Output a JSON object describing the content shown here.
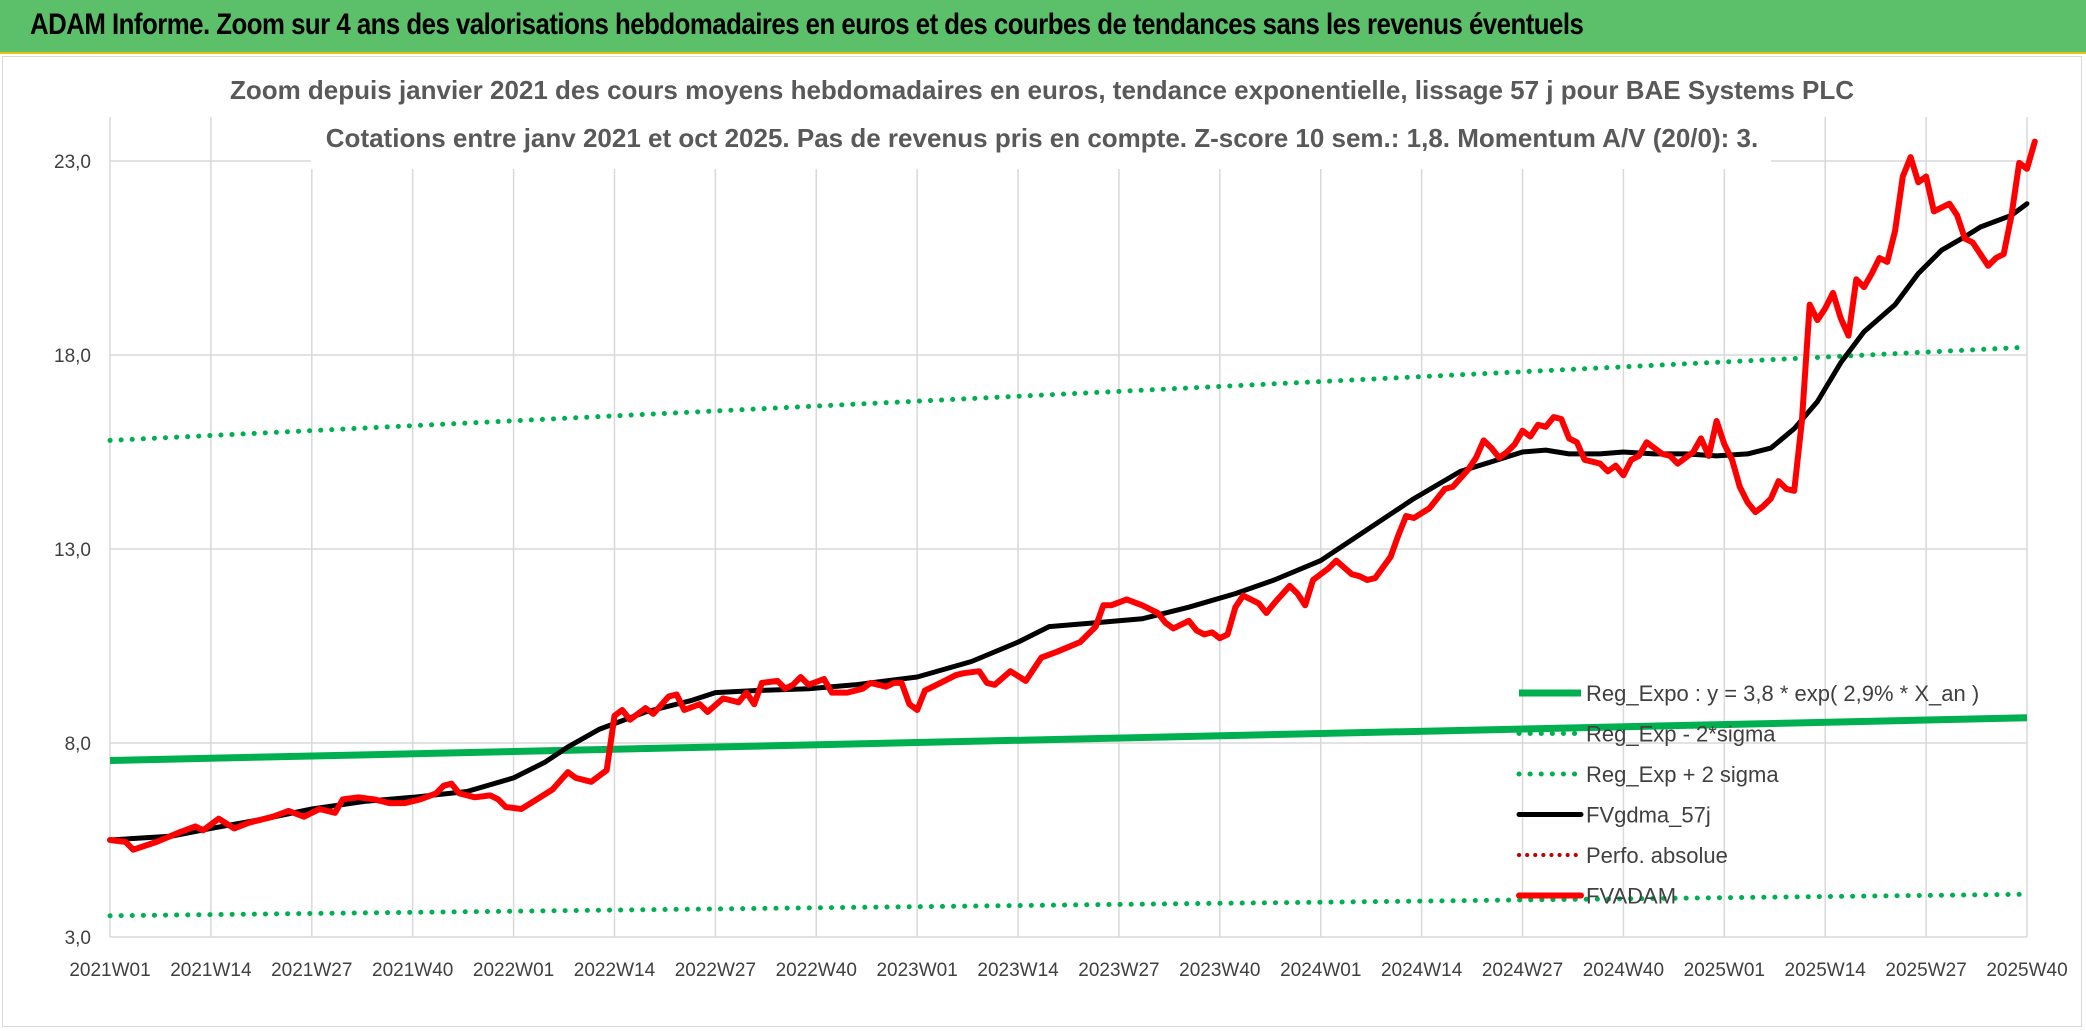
{
  "banner": {
    "title": "ADAM Informe. Zoom sur 4 ans des valorisations hebdomadaires en euros et des courbes de tendances sans les revenus éventuels"
  },
  "chart_data": {
    "type": "line",
    "title_line1": "Zoom depuis janvier 2021 des cours moyens hebdomadaires en euros, tendance exponentielle, lissage 57 j pour BAE Systems PLC",
    "title_line2": "Cotations entre janv 2021 et oct 2025. Pas de revenus pris en compte. Z-score 10 sem.: 1,8. Momentum A/V (20/0): 3.",
    "x_categories": [
      "2021W01",
      "2021W14",
      "2021W27",
      "2021W40",
      "2022W01",
      "2022W14",
      "2022W27",
      "2022W40",
      "2023W01",
      "2023W14",
      "2023W27",
      "2023W40",
      "2024W01",
      "2024W14",
      "2024W27",
      "2024W40",
      "2025W01",
      "2025W14",
      "2025W27",
      "2025W40"
    ],
    "x_range_weeks": [
      0,
      247
    ],
    "y_ticks": [
      "3,0",
      "8,0",
      "13,0",
      "18,0",
      "23,0"
    ],
    "ylim": [
      3.0,
      23.0
    ],
    "legend_position": "bottom-right",
    "colors": {
      "green": "#00b050",
      "black": "#000000",
      "red": "#ff0000",
      "red_dotted": "#c00000",
      "grid": "#d9d9d9"
    },
    "series": [
      {
        "name": "Reg_Expo : y = 3,8 * exp( 2,9% *  X_an )",
        "style": "solid-green",
        "points": [
          [
            0,
            7.55
          ],
          [
            247,
            8.65
          ]
        ]
      },
      {
        "name": "Reg_Exp - 2*sigma",
        "style": "dotted-green",
        "points": [
          [
            0,
            3.55
          ],
          [
            247,
            4.1
          ]
        ]
      },
      {
        "name": "Reg_Exp + 2 sigma",
        "style": "dotted-green",
        "points": [
          [
            0,
            15.8
          ],
          [
            247,
            18.2
          ]
        ]
      },
      {
        "name": "FVgdma_57j",
        "style": "solid-black",
        "points": [
          [
            0,
            5.5
          ],
          [
            8,
            5.6
          ],
          [
            13,
            5.8
          ],
          [
            20,
            6.05
          ],
          [
            26,
            6.3
          ],
          [
            33,
            6.5
          ],
          [
            39,
            6.6
          ],
          [
            46,
            6.75
          ],
          [
            52,
            7.1
          ],
          [
            56,
            7.5
          ],
          [
            59,
            7.9
          ],
          [
            63,
            8.35
          ],
          [
            69,
            8.8
          ],
          [
            75,
            9.1
          ],
          [
            78,
            9.3
          ],
          [
            83,
            9.35
          ],
          [
            90,
            9.4
          ],
          [
            96,
            9.5
          ],
          [
            104,
            9.7
          ],
          [
            111,
            10.1
          ],
          [
            117,
            10.6
          ],
          [
            121,
            11.0
          ],
          [
            127,
            11.1
          ],
          [
            133,
            11.2
          ],
          [
            139,
            11.5
          ],
          [
            145,
            11.85
          ],
          [
            150,
            12.2
          ],
          [
            156,
            12.7
          ],
          [
            162,
            13.5
          ],
          [
            168,
            14.3
          ],
          [
            174,
            15.0
          ],
          [
            178,
            15.25
          ],
          [
            182,
            15.5
          ],
          [
            185,
            15.55
          ],
          [
            188,
            15.45
          ],
          [
            192,
            15.45
          ],
          [
            195,
            15.5
          ],
          [
            199,
            15.45
          ],
          [
            203,
            15.45
          ],
          [
            207,
            15.4
          ],
          [
            211,
            15.45
          ],
          [
            214,
            15.6
          ],
          [
            217,
            16.1
          ],
          [
            220,
            16.8
          ],
          [
            223,
            17.8
          ],
          [
            226,
            18.6
          ],
          [
            230,
            19.3
          ],
          [
            233,
            20.1
          ],
          [
            236,
            20.7
          ],
          [
            239,
            21.05
          ],
          [
            241,
            21.3
          ],
          [
            245,
            21.6
          ],
          [
            247,
            21.9
          ]
        ]
      },
      {
        "name": "Perfo. absolue",
        "style": "dotted-red",
        "points": []
      },
      {
        "name": "FVADAM",
        "style": "solid-red",
        "points": [
          [
            0,
            5.5
          ],
          [
            2,
            5.45
          ],
          [
            3,
            5.25
          ],
          [
            6,
            5.45
          ],
          [
            9,
            5.7
          ],
          [
            11,
            5.85
          ],
          [
            12,
            5.75
          ],
          [
            14,
            6.05
          ],
          [
            16,
            5.8
          ],
          [
            18,
            5.95
          ],
          [
            21,
            6.1
          ],
          [
            23,
            6.25
          ],
          [
            25,
            6.1
          ],
          [
            26,
            6.2
          ],
          [
            27,
            6.3
          ],
          [
            29,
            6.2
          ],
          [
            30,
            6.55
          ],
          [
            32,
            6.6
          ],
          [
            34,
            6.55
          ],
          [
            36,
            6.45
          ],
          [
            38,
            6.45
          ],
          [
            40,
            6.55
          ],
          [
            42,
            6.7
          ],
          [
            43,
            6.9
          ],
          [
            44,
            6.95
          ],
          [
            45,
            6.7
          ],
          [
            47,
            6.6
          ],
          [
            49,
            6.65
          ],
          [
            50,
            6.55
          ],
          [
            51,
            6.35
          ],
          [
            53,
            6.3
          ],
          [
            55,
            6.55
          ],
          [
            57,
            6.8
          ],
          [
            59,
            7.25
          ],
          [
            60,
            7.1
          ],
          [
            62,
            7.0
          ],
          [
            63,
            7.15
          ],
          [
            64,
            7.3
          ],
          [
            65,
            8.7
          ],
          [
            66,
            8.85
          ],
          [
            67,
            8.6
          ],
          [
            69,
            8.9
          ],
          [
            70,
            8.75
          ],
          [
            72,
            9.2
          ],
          [
            73,
            9.25
          ],
          [
            74,
            8.85
          ],
          [
            76,
            9.0
          ],
          [
            77,
            8.8
          ],
          [
            79,
            9.15
          ],
          [
            81,
            9.05
          ],
          [
            82,
            9.3
          ],
          [
            83,
            9.0
          ],
          [
            84,
            9.55
          ],
          [
            86,
            9.6
          ],
          [
            87,
            9.4
          ],
          [
            88,
            9.5
          ],
          [
            89,
            9.7
          ],
          [
            90,
            9.5
          ],
          [
            92,
            9.65
          ],
          [
            93,
            9.3
          ],
          [
            95,
            9.3
          ],
          [
            97,
            9.4
          ],
          [
            98,
            9.55
          ],
          [
            100,
            9.45
          ],
          [
            101,
            9.55
          ],
          [
            102,
            9.55
          ],
          [
            103,
            9.0
          ],
          [
            104,
            8.85
          ],
          [
            105,
            9.35
          ],
          [
            107,
            9.55
          ],
          [
            109,
            9.75
          ],
          [
            110,
            9.8
          ],
          [
            112,
            9.85
          ],
          [
            113,
            9.55
          ],
          [
            114,
            9.5
          ],
          [
            116,
            9.85
          ],
          [
            118,
            9.6
          ],
          [
            120,
            10.2
          ],
          [
            122,
            10.35
          ],
          [
            125,
            10.6
          ],
          [
            127,
            11.0
          ],
          [
            128,
            11.55
          ],
          [
            129,
            11.55
          ],
          [
            131,
            11.7
          ],
          [
            133,
            11.55
          ],
          [
            135,
            11.35
          ],
          [
            136,
            11.1
          ],
          [
            137,
            10.95
          ],
          [
            139,
            11.15
          ],
          [
            140,
            10.9
          ],
          [
            141,
            10.8
          ],
          [
            142,
            10.85
          ],
          [
            143,
            10.7
          ],
          [
            144,
            10.8
          ],
          [
            145,
            11.5
          ],
          [
            146,
            11.8
          ],
          [
            148,
            11.6
          ],
          [
            149,
            11.35
          ],
          [
            150,
            11.6
          ],
          [
            152,
            12.05
          ],
          [
            153,
            11.85
          ],
          [
            154,
            11.55
          ],
          [
            155,
            12.2
          ],
          [
            157,
            12.5
          ],
          [
            158,
            12.7
          ],
          [
            160,
            12.35
          ],
          [
            161,
            12.3
          ],
          [
            162,
            12.2
          ],
          [
            163,
            12.25
          ],
          [
            165,
            12.8
          ],
          [
            166,
            13.35
          ],
          [
            167,
            13.85
          ],
          [
            168,
            13.8
          ],
          [
            170,
            14.05
          ],
          [
            172,
            14.55
          ],
          [
            173,
            14.6
          ],
          [
            175,
            15.05
          ],
          [
            176,
            15.35
          ],
          [
            177,
            15.8
          ],
          [
            178,
            15.6
          ],
          [
            179,
            15.35
          ],
          [
            180,
            15.5
          ],
          [
            181,
            15.7
          ],
          [
            182,
            16.05
          ],
          [
            183,
            15.9
          ],
          [
            184,
            16.2
          ],
          [
            185,
            16.15
          ],
          [
            186,
            16.4
          ],
          [
            187,
            16.35
          ],
          [
            188,
            15.85
          ],
          [
            189,
            15.75
          ],
          [
            190,
            15.3
          ],
          [
            191,
            15.25
          ],
          [
            192,
            15.2
          ],
          [
            193,
            15.0
          ],
          [
            194,
            15.15
          ],
          [
            195,
            14.9
          ],
          [
            196,
            15.3
          ],
          [
            197,
            15.4
          ],
          [
            198,
            15.75
          ],
          [
            199,
            15.6
          ],
          [
            200,
            15.45
          ],
          [
            201,
            15.4
          ],
          [
            202,
            15.2
          ],
          [
            203,
            15.35
          ],
          [
            204,
            15.5
          ],
          [
            205,
            15.85
          ],
          [
            206,
            15.4
          ],
          [
            207,
            16.3
          ],
          [
            208,
            15.7
          ],
          [
            209,
            15.3
          ],
          [
            210,
            14.6
          ],
          [
            211,
            14.2
          ],
          [
            212,
            13.95
          ],
          [
            213,
            14.1
          ],
          [
            214,
            14.3
          ],
          [
            215,
            14.75
          ],
          [
            216,
            14.55
          ],
          [
            217,
            14.5
          ],
          [
            218,
            16.3
          ],
          [
            219,
            19.3
          ],
          [
            220,
            18.9
          ],
          [
            221,
            19.2
          ],
          [
            222,
            19.6
          ],
          [
            223,
            18.95
          ],
          [
            224,
            18.5
          ],
          [
            225,
            19.95
          ],
          [
            226,
            19.75
          ],
          [
            227,
            20.1
          ],
          [
            228,
            20.5
          ],
          [
            229,
            20.4
          ],
          [
            230,
            21.2
          ],
          [
            231,
            22.6
          ],
          [
            232,
            23.1
          ],
          [
            233,
            22.45
          ],
          [
            234,
            22.6
          ],
          [
            235,
            21.7
          ],
          [
            236,
            21.8
          ],
          [
            237,
            21.9
          ],
          [
            238,
            21.6
          ],
          [
            239,
            21.0
          ],
          [
            240,
            20.9
          ],
          [
            241,
            20.6
          ],
          [
            242,
            20.3
          ],
          [
            243,
            20.5
          ],
          [
            244,
            20.6
          ],
          [
            245,
            21.6
          ],
          [
            246,
            22.95
          ],
          [
            247,
            22.8
          ],
          [
            248,
            23.5
          ]
        ]
      }
    ]
  }
}
